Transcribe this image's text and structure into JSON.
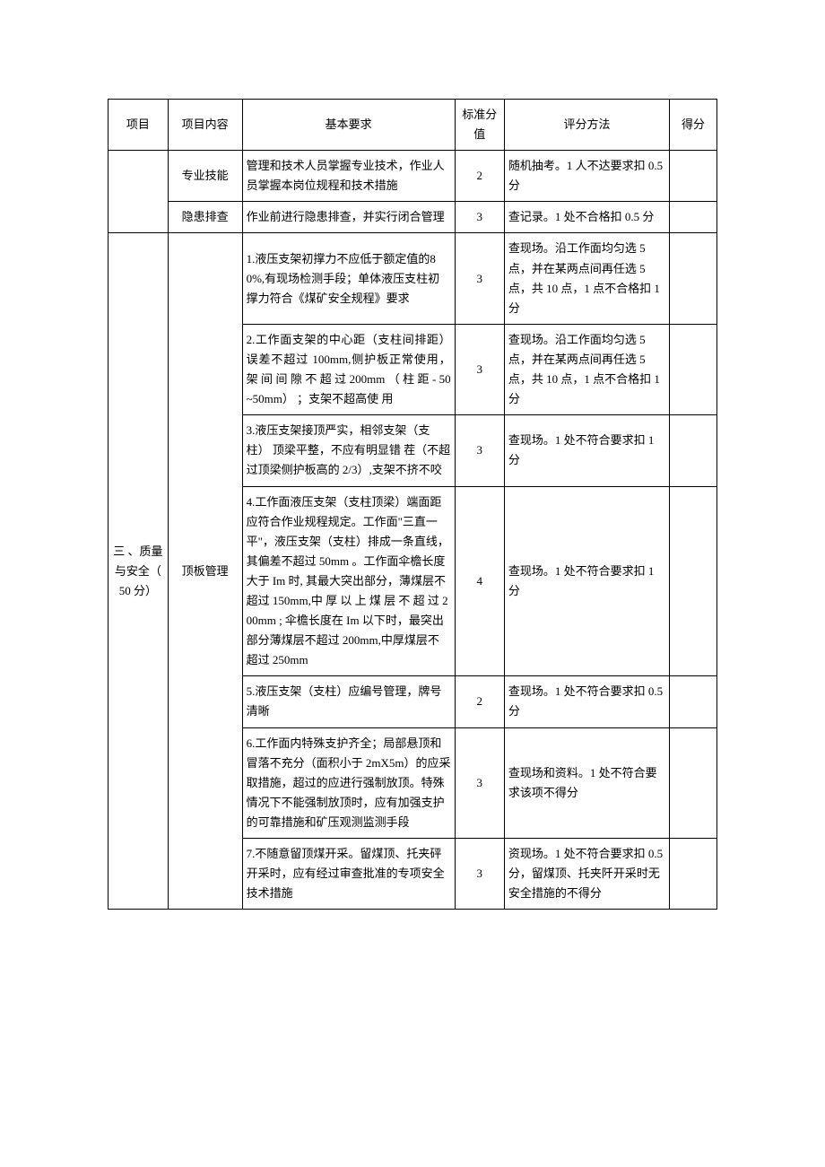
{
  "headers": {
    "project": "项目",
    "content": "项目内容",
    "requirement": "基本要求",
    "std_score": "标准分值",
    "method": "评分方法",
    "got": "得分"
  },
  "section1": {
    "rows": [
      {
        "content": "专业技能",
        "requirement": "管理和技术人员掌握专业技术，作业人员掌握本岗位规程和技术措施",
        "score": "2",
        "method": "随机抽考。1 人不达要求扣 0.5 分"
      },
      {
        "content": "隐患排查",
        "requirement": "作业前进行隐患排查，并实行闭合管理",
        "score": "3",
        "method": "查记录。1 处不合格扣 0.5 分"
      }
    ]
  },
  "section2": {
    "project": "三 、质量与安全（ 50 分）",
    "content": "顶板管理",
    "rows": [
      {
        "requirement": "1.液压支架初撑力不应低于额定值的80%,有现场检测手段；单体液压支柱初撑力符合《煤矿安全规程》要求",
        "score": "3",
        "method": "查现场。沿工作面均匀选 5 点，并在某两点间再任选 5 点，共 10 点，1 点不合格扣 1 分"
      },
      {
        "requirement": "2.工作面支架的中心距（支柱间排距）误差不超过 100mm,侧护板正常使用， 架 间 间 隙 不 超 过 200mm （ 柱 距 - 50~50mm） ；支架不超高使\n用",
        "score": "3",
        "method": "查现场。沿工作面均匀选 5 点，并在某两点间再任选 5 点，共 10 点，1 点不合格扣 1 分"
      },
      {
        "requirement": "3.液压支架接顶严实，相邻支架（支柱） 顶梁平整，不应有明显错\n茬（不超过顶梁侧护板高的 2/3）,支架不挤不咬",
        "score": "3",
        "method": "查现场。1 处不符合要求扣 1 分"
      },
      {
        "requirement": "4.工作面液压支架（支柱顶梁）端面距应符合作业规程规定。工作面\"三直一平\"，液压支架（支柱）排成一条直线， 其偏差不超过 50mm 。工作面伞檐长度大于 Im 时, 其最大突出部分，薄煤层不超过 150mm,中 厚 以 上 煤 层 不 超 过 200mm ; 伞檐长度在 Im 以下时，最突出部分薄煤层不超过 200mm,中厚煤层不超过 250mm",
        "score": "4",
        "method": "查现场。1 处不符合要求扣 1 分"
      },
      {
        "requirement": "5.液压支架（支柱）应编号管理，牌号清晰",
        "score": "2",
        "method": "查现场。1 处不符合要求扣 0.5 分"
      },
      {
        "requirement": "6.工作面内特殊支护齐全；局部悬顶和冒落不充分（面积小于 2mX5m）的应采取措施，超过的应进行强制放顶。特殊情况下不能强制放顶时，应有加强支护的可靠措施和矿压观测监测手段",
        "score": "3",
        "method": "查现场和资料。1 处不符合要求该项不得分"
      },
      {
        "requirement": "7.不随意留顶煤开采。留煤顶、托夹砰开采时，应有经过审查批准的专项安全技术措施",
        "score": "3",
        "method": "资现场。1 处不符合要求扣 0.5 分，留煤顶、托夹阡开采时无安全措施的不得分"
      }
    ]
  }
}
